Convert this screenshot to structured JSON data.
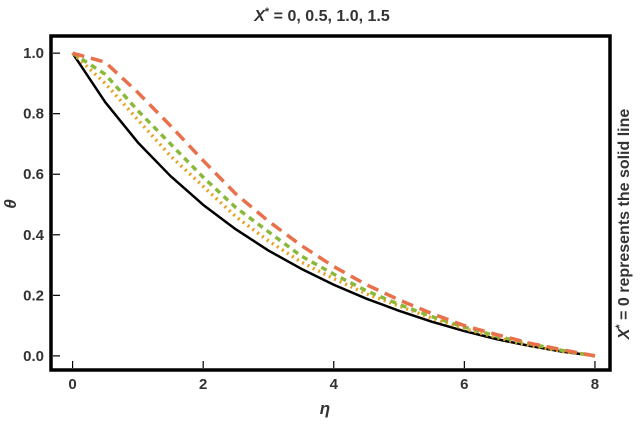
{
  "chart_data": {
    "type": "line",
    "title_var": "X",
    "title_sup": "*",
    "title_rest": " = 0, 0.5, 1.0, 1.5",
    "xlabel": "η",
    "ylabel": "θ",
    "right_label_var": "X",
    "right_label_sup": "*",
    "right_label_rest": " = 0 represents the solid line",
    "xlim": [
      -0.3,
      8.2
    ],
    "ylim": [
      -0.04,
      1.05
    ],
    "xticks": [
      "0",
      "2",
      "4",
      "6",
      "8"
    ],
    "xtick_values": [
      0,
      2,
      4,
      6,
      8
    ],
    "yticks": [
      "0.0",
      "0.2",
      "0.4",
      "0.6",
      "0.8",
      "1.0"
    ],
    "ytick_values": [
      0,
      0.2,
      0.4,
      0.6,
      0.8,
      1.0
    ],
    "x": [
      0,
      0.5,
      1,
      1.5,
      2,
      2.5,
      3,
      3.5,
      4,
      4.5,
      5,
      5.5,
      6,
      6.5,
      7,
      7.5,
      8
    ],
    "series": [
      {
        "color": "#000000",
        "dash": "solid",
        "values": [
          1.0,
          0.838,
          0.705,
          0.594,
          0.499,
          0.418,
          0.348,
          0.288,
          0.235,
          0.189,
          0.149,
          0.113,
          0.082,
          0.055,
          0.033,
          0.014,
          0.0
        ]
      },
      {
        "color": "#e8a020",
        "dash": "dot",
        "values": [
          1.0,
          0.9,
          0.78,
          0.66,
          0.56,
          0.46,
          0.38,
          0.31,
          0.255,
          0.205,
          0.165,
          0.125,
          0.09,
          0.06,
          0.035,
          0.015,
          0.0
        ]
      },
      {
        "color": "#8ab83a",
        "dash": "shortdash",
        "values": [
          1.0,
          0.93,
          0.81,
          0.7,
          0.59,
          0.49,
          0.41,
          0.33,
          0.27,
          0.215,
          0.17,
          0.13,
          0.095,
          0.065,
          0.04,
          0.018,
          0.0
        ]
      },
      {
        "color": "#e8704a",
        "dash": "longdash",
        "values": [
          1.0,
          0.97,
          0.87,
          0.76,
          0.645,
          0.535,
          0.445,
          0.365,
          0.295,
          0.235,
          0.185,
          0.14,
          0.1,
          0.07,
          0.042,
          0.02,
          0.0
        ]
      }
    ],
    "grid": false,
    "legend": "none"
  }
}
